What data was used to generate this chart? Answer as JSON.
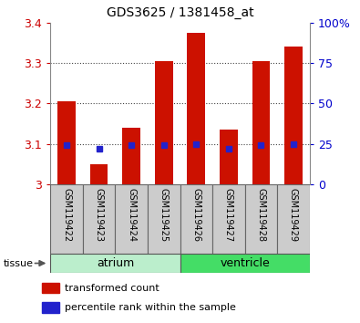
{
  "title": "GDS3625 / 1381458_at",
  "samples": [
    "GSM119422",
    "GSM119423",
    "GSM119424",
    "GSM119425",
    "GSM119426",
    "GSM119427",
    "GSM119428",
    "GSM119429"
  ],
  "transformed_counts": [
    3.205,
    3.05,
    3.14,
    3.305,
    3.375,
    3.135,
    3.305,
    3.34
  ],
  "percentile_ranks": [
    24,
    22,
    24,
    24,
    25,
    22,
    24,
    25
  ],
  "ylim": [
    3.0,
    3.4
  ],
  "yticks": [
    3.0,
    3.1,
    3.2,
    3.3,
    3.4
  ],
  "ytick_labels": [
    "3",
    "3.1",
    "3.2",
    "3.3",
    "3.4"
  ],
  "right_yticks": [
    0,
    25,
    50,
    75,
    100
  ],
  "right_ylabels": [
    "0",
    "25",
    "50",
    "75",
    "100%"
  ],
  "bar_color": "#CC1100",
  "blue_color": "#2222CC",
  "bar_width": 0.55,
  "atrium_color": "#BBEECC",
  "ventricle_color": "#44DD66",
  "sample_box_color": "#CCCCCC",
  "ylabel_color": "#CC0000",
  "right_ylabel_color": "#0000CC",
  "base_value": 3.0,
  "grid_linestyle": ":",
  "grid_color": "#444444",
  "grid_linewidth": 0.8
}
